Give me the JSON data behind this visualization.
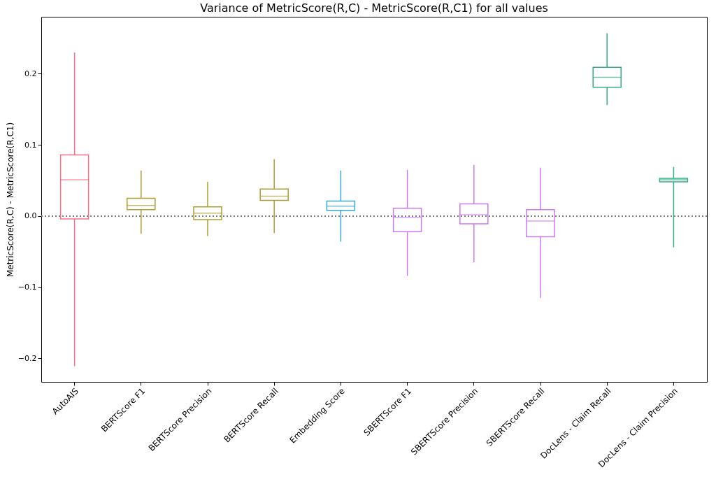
{
  "chart_data": {
    "type": "box",
    "title": "Variance of MetricScore(R,C) - MetricScore(R,C1) for all values",
    "ylabel": "MetricScore(R,C) - MetricScore(R,C1)",
    "categories": [
      "AutoAIS",
      "BERTScore F1",
      "BERTScore Precision",
      "BERTScore Recall",
      "Embedding Score",
      "SBERTScore F1",
      "SBERTScore Precision",
      "SBERTScore Recall",
      "DocLens - Claim Recall",
      "DocLens - Claim Precision"
    ],
    "colors": [
      "#f77189",
      "#ae9d31",
      "#ae9d31",
      "#ae9d31",
      "#39a7d0",
      "#cc7af4",
      "#cc7af4",
      "#cc7af4",
      "#36ad8a",
      "#36ad8a"
    ],
    "boxes": [
      {
        "low": -0.211,
        "q1": -0.004,
        "median": 0.051,
        "q3": 0.086,
        "high": 0.23
      },
      {
        "low": -0.025,
        "q1": 0.009,
        "median": 0.015,
        "q3": 0.025,
        "high": 0.064
      },
      {
        "low": -0.028,
        "q1": -0.005,
        "median": 0.004,
        "q3": 0.013,
        "high": 0.048
      },
      {
        "low": -0.024,
        "q1": 0.022,
        "median": 0.028,
        "q3": 0.038,
        "high": 0.08
      },
      {
        "low": -0.036,
        "q1": 0.008,
        "median": 0.014,
        "q3": 0.021,
        "high": 0.064
      },
      {
        "low": -0.084,
        "q1": -0.022,
        "median": -0.002,
        "q3": 0.011,
        "high": 0.065
      },
      {
        "low": -0.065,
        "q1": -0.011,
        "median": 0.002,
        "q3": 0.017,
        "high": 0.072
      },
      {
        "low": -0.115,
        "q1": -0.029,
        "median": -0.007,
        "q3": 0.009,
        "high": 0.068
      },
      {
        "low": 0.156,
        "q1": 0.181,
        "median": 0.195,
        "q3": 0.209,
        "high": 0.257
      },
      {
        "low": -0.044,
        "q1": 0.048,
        "median": 0.051,
        "q3": 0.053,
        "high": 0.069
      }
    ],
    "ylim": [
      -0.233,
      0.28
    ],
    "yticks": [
      {
        "value": -0.2,
        "label": "−0.2"
      },
      {
        "value": -0.1,
        "label": "−0.1"
      },
      {
        "value": 0,
        "label": "0.0"
      },
      {
        "value": 0.1,
        "label": "0.1"
      },
      {
        "value": 0.2,
        "label": "0.2"
      }
    ],
    "ref_lines": [
      {
        "axis": "y",
        "value": 0,
        "color": "#808080",
        "line_style": "dotted"
      }
    ],
    "grid": false,
    "legend": false
  }
}
